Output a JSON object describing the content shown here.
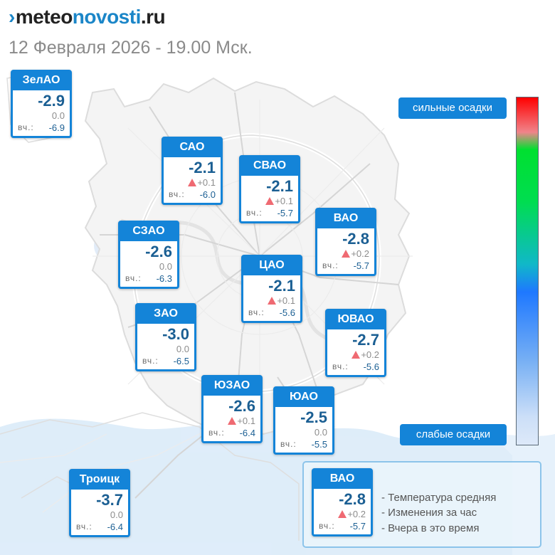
{
  "header": {
    "logo_mark": "›",
    "logo_part1": "meteo",
    "logo_part2": "novosti",
    "logo_part3": ".ru",
    "date": "12 Февраля 2026 - 19.00 Мск."
  },
  "yesterday_label": "вч.:",
  "districts": [
    {
      "name": "ЗелАО",
      "temp": "-2.9",
      "change": "0.0",
      "up": false,
      "yesterday": "-6.9"
    },
    {
      "name": "САО",
      "temp": "-2.1",
      "change": "+0.1",
      "up": true,
      "yesterday": "-6.0"
    },
    {
      "name": "СВАО",
      "temp": "-2.1",
      "change": "+0.1",
      "up": true,
      "yesterday": "-5.7"
    },
    {
      "name": "ВАО",
      "temp": "-2.8",
      "change": "+0.2",
      "up": true,
      "yesterday": "-5.7"
    },
    {
      "name": "СЗАО",
      "temp": "-2.6",
      "change": "0.0",
      "up": false,
      "yesterday": "-6.3"
    },
    {
      "name": "ЦАО",
      "temp": "-2.1",
      "change": "+0.1",
      "up": true,
      "yesterday": "-5.6"
    },
    {
      "name": "ЗАО",
      "temp": "-3.0",
      "change": "0.0",
      "up": false,
      "yesterday": "-6.5"
    },
    {
      "name": "ЮВАО",
      "temp": "-2.7",
      "change": "+0.2",
      "up": true,
      "yesterday": "-5.6"
    },
    {
      "name": "ЮЗАО",
      "temp": "-2.6",
      "change": "+0.1",
      "up": true,
      "yesterday": "-6.4"
    },
    {
      "name": "ЮАО",
      "temp": "-2.5",
      "change": "0.0",
      "up": false,
      "yesterday": "-5.5"
    },
    {
      "name": "Троицк",
      "temp": "-3.7",
      "change": "0.0",
      "up": false,
      "yesterday": "-6.4"
    }
  ],
  "precip_scale": {
    "high_label": "сильные осадки",
    "low_label": "слабые осадки"
  },
  "legend": {
    "sample": {
      "name": "ВАО",
      "temp": "-2.8",
      "change": "+0.2",
      "up": true,
      "yesterday": "-5.7"
    },
    "line1": "- Температура средняя",
    "line2": "- Изменения за час",
    "line3": "- Вчера в это время"
  },
  "colors": {
    "card_accent": "#1484d8",
    "temp_text": "#1b5f93",
    "rise_marker": "#ef6a72",
    "map_line": "#d9d9d9",
    "precip_light": "#cfe4f7"
  }
}
